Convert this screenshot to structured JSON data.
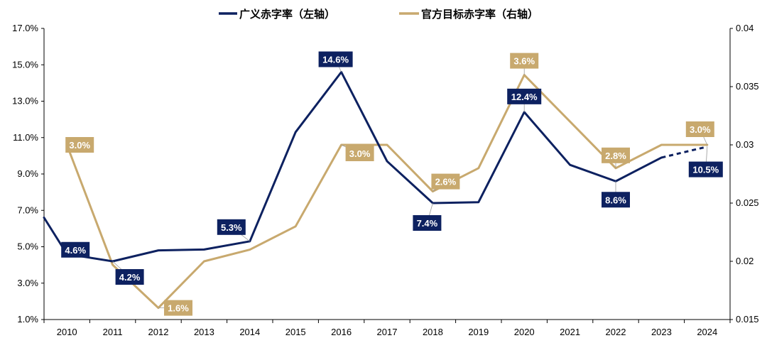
{
  "chart_data": {
    "type": "line",
    "categories": [
      "2010",
      "2011",
      "2012",
      "2013",
      "2014",
      "2015",
      "2016",
      "2017",
      "2018",
      "2019",
      "2020",
      "2021",
      "2022",
      "2023",
      "2024"
    ],
    "y_left": {
      "ticks": [
        1.0,
        3.0,
        5.0,
        7.0,
        9.0,
        11.0,
        13.0,
        15.0,
        17.0
      ],
      "tick_labels": [
        "1.0%",
        "3.0%",
        "5.0%",
        "7.0%",
        "9.0%",
        "11.0%",
        "13.0%",
        "15.0%",
        "17.0%"
      ],
      "range": [
        1.0,
        17.0
      ]
    },
    "y_right": {
      "ticks": [
        0.015,
        0.02,
        0.025,
        0.03,
        0.035,
        0.04
      ],
      "tick_labels": [
        "0.015",
        "0.02",
        "0.025",
        "0.03",
        "0.035",
        "0.04"
      ],
      "range": [
        0.015,
        0.04
      ]
    },
    "series": [
      {
        "name": "广义赤字率（左轴）",
        "axis": "left",
        "color": "#0d2160",
        "leading_value": 6.6,
        "values": [
          4.6,
          4.2,
          4.8,
          4.85,
          5.3,
          11.3,
          14.6,
          9.7,
          7.4,
          7.45,
          12.4,
          9.5,
          8.6,
          9.9,
          10.5
        ],
        "dashed_last_segment": true,
        "data_labels": [
          {
            "index": 0,
            "text": "4.6%"
          },
          {
            "index": 1,
            "text": "4.2%"
          },
          {
            "index": 4,
            "text": "5.3%"
          },
          {
            "index": 6,
            "text": "14.6%"
          },
          {
            "index": 8,
            "text": "7.4%"
          },
          {
            "index": 10,
            "text": "12.4%"
          },
          {
            "index": 12,
            "text": "8.6%"
          },
          {
            "index": 14,
            "text": "10.5%"
          }
        ]
      },
      {
        "name": "官方目标赤字率（右轴）",
        "axis": "right",
        "color": "#c8a96e",
        "values": [
          0.03,
          0.0197,
          0.016,
          0.02,
          0.021,
          0.023,
          0.03,
          0.03,
          0.026,
          0.028,
          0.036,
          0.032,
          0.028,
          0.03,
          0.03
        ],
        "data_labels": [
          {
            "index": 0,
            "text": "3.0%"
          },
          {
            "index": 2,
            "text": "1.6%"
          },
          {
            "index": 6,
            "text": "3.0%"
          },
          {
            "index": 8,
            "text": "2.6%"
          },
          {
            "index": 10,
            "text": "3.6%"
          },
          {
            "index": 12,
            "text": "2.8%"
          },
          {
            "index": 14,
            "text": "3.0%"
          }
        ]
      }
    ],
    "grid": false,
    "legend_position": "top-center"
  }
}
